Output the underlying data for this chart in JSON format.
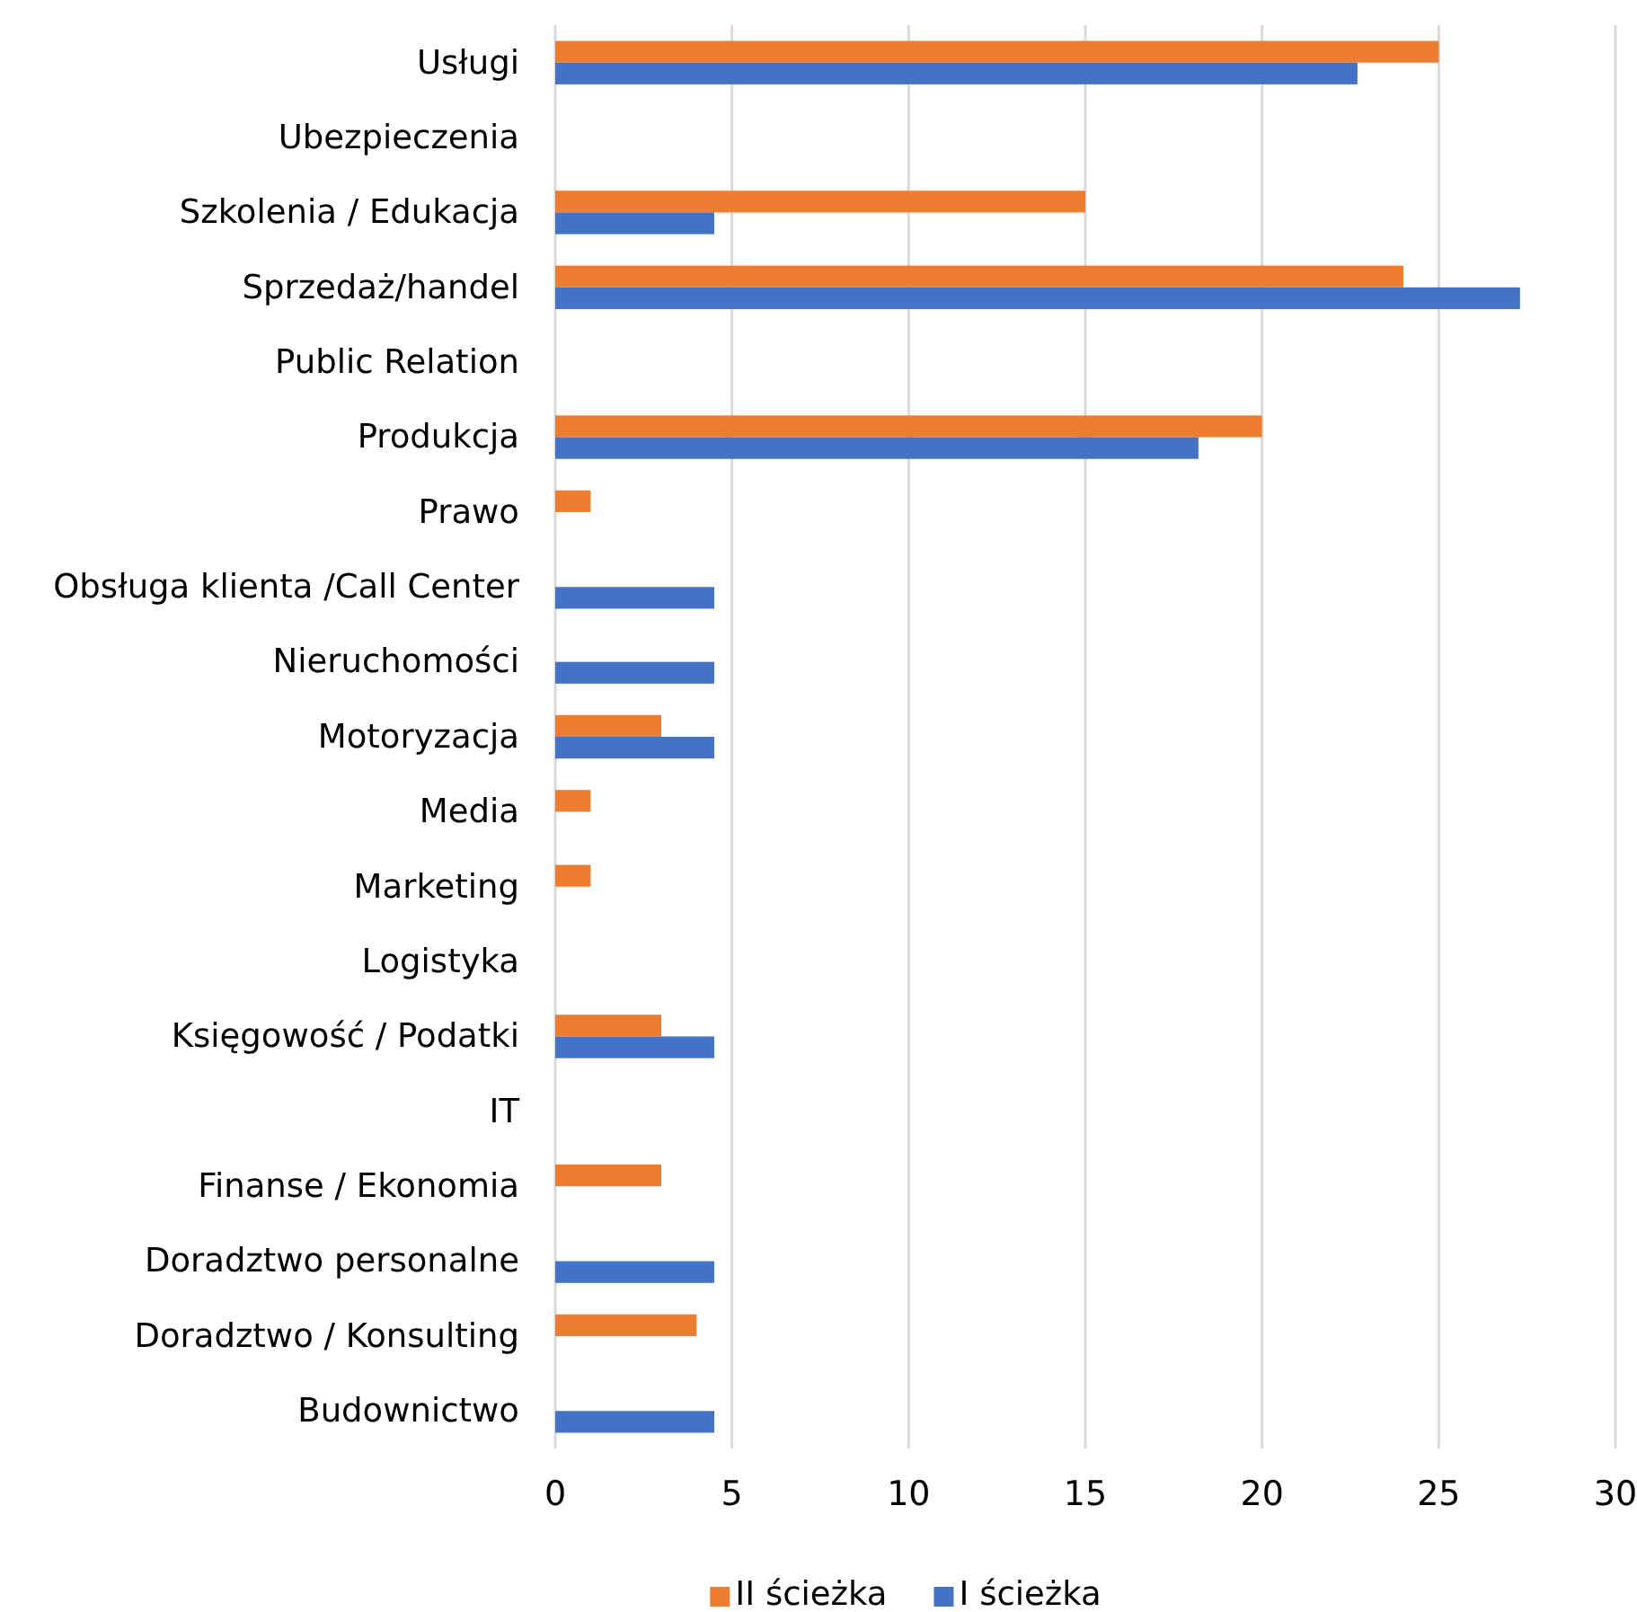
{
  "chart_data": {
    "type": "bar",
    "orientation": "horizontal",
    "categories": [
      "Usługi",
      "Ubezpieczenia",
      "Szkolenia / Edukacja",
      "Sprzedaż/handel",
      "Public Relation",
      "Produkcja",
      "Prawo",
      "Obsługa klienta /Call Center",
      "Nieruchomości",
      "Motoryzacja",
      "Media",
      "Marketing",
      "Logistyka",
      "Księgowość / Podatki",
      "IT",
      "Finanse / Ekonomia",
      "Doradztwo personalne",
      "Doradztwo / Konsulting",
      "Budownictwo"
    ],
    "series": [
      {
        "name": "II ścieżka",
        "color": "#ed7d31",
        "values": [
          25,
          0,
          15,
          24,
          0,
          20,
          1,
          0,
          0,
          3,
          1,
          1,
          0,
          3,
          0,
          3,
          0,
          4,
          0
        ]
      },
      {
        "name": "I ścieżka",
        "color": "#4472c4",
        "values": [
          22.7,
          0,
          4.5,
          27.3,
          0,
          18.2,
          0,
          4.5,
          4.5,
          4.5,
          0,
          0,
          0,
          4.5,
          0,
          0,
          4.5,
          0,
          4.5
        ]
      }
    ],
    "xlim": [
      0,
      30
    ],
    "xticks": [
      0,
      5,
      10,
      15,
      20,
      25,
      30
    ],
    "grid": "x",
    "legend": "bottom"
  }
}
